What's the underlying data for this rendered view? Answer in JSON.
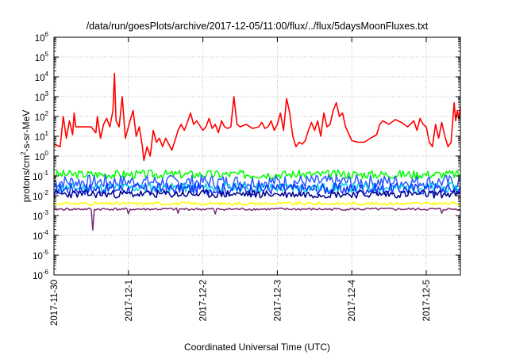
{
  "chart_data": {
    "type": "line",
    "title": "/data/run/goesPlots/archive/2017-12-05/11:00/flux/../flux/5daysMoonFluxes.txt",
    "xlabel": "Coordinated Universal Time (UTC)",
    "ylabel_parts": [
      "protons/cm",
      "2",
      "-s-sr-MeV"
    ],
    "y_scale": "log",
    "ylim": [
      1e-06,
      1000000.0
    ],
    "y_ticks": [
      {
        "exp": "-6",
        "value": 1e-06
      },
      {
        "exp": "-5",
        "value": 1e-05
      },
      {
        "exp": "-4",
        "value": 0.0001
      },
      {
        "exp": "-3",
        "value": 0.001
      },
      {
        "exp": "-2",
        "value": 0.01
      },
      {
        "exp": "-1",
        "value": 0.1
      },
      {
        "exp": "0",
        "value": 1
      },
      {
        "exp": "1",
        "value": 10
      },
      {
        "exp": "2",
        "value": 100
      },
      {
        "exp": "3",
        "value": 1000.0
      },
      {
        "exp": "4",
        "value": 10000.0
      },
      {
        "exp": "5",
        "value": 100000.0
      },
      {
        "exp": "6",
        "value": 1000000.0
      }
    ],
    "y_tick_base": "10",
    "xlim": [
      "2017-11-30T00:00",
      "2017-12-05T11:00"
    ],
    "x_ticks": [
      "2017-11-30",
      "2017-12-1",
      "2017-12-2",
      "2017-12-3",
      "2017-12-4",
      "2017-12-5"
    ],
    "grid": true,
    "series": [
      {
        "color": "#ff0000",
        "points": [
          [
            "2017-11-30T00:00",
            4
          ],
          [
            "2017-11-30T02:00",
            3
          ],
          [
            "2017-11-30T03:00",
            100
          ],
          [
            "2017-11-30T04:00",
            8
          ],
          [
            "2017-11-30T05:00",
            60
          ],
          [
            "2017-11-30T06:00",
            12
          ],
          [
            "2017-11-30T06:30",
            150
          ],
          [
            "2017-11-30T07:00",
            30
          ],
          [
            "2017-11-30T12:00",
            30
          ],
          [
            "2017-11-30T13:30",
            15
          ],
          [
            "2017-11-30T14:00",
            100
          ],
          [
            "2017-11-30T15:00",
            8
          ],
          [
            "2017-11-30T16:00",
            40
          ],
          [
            "2017-11-30T17:00",
            80
          ],
          [
            "2017-11-30T18:00",
            30
          ],
          [
            "2017-11-30T19:00",
            200
          ],
          [
            "2017-11-30T19:30",
            15000
          ],
          [
            "2017-11-30T20:00",
            60
          ],
          [
            "2017-11-30T21:00",
            30
          ],
          [
            "2017-11-30T22:00",
            1000
          ],
          [
            "2017-11-30T23:00",
            8
          ],
          [
            "2017-12-01T00:30",
            60
          ],
          [
            "2017-12-01T01:30",
            200
          ],
          [
            "2017-12-01T02:30",
            10
          ],
          [
            "2017-12-01T03:30",
            30
          ],
          [
            "2017-12-01T04:30",
            3
          ],
          [
            "2017-12-01T05:00",
            0.6
          ],
          [
            "2017-12-01T06:00",
            3
          ],
          [
            "2017-12-01T07:00",
            1
          ],
          [
            "2017-12-01T08:00",
            20
          ],
          [
            "2017-12-01T09:00",
            5
          ],
          [
            "2017-12-01T10:00",
            8
          ],
          [
            "2017-12-01T11:00",
            3
          ],
          [
            "2017-12-01T12:00",
            8
          ],
          [
            "2017-12-01T13:00",
            4
          ],
          [
            "2017-12-01T14:00",
            2
          ],
          [
            "2017-12-01T15:00",
            6
          ],
          [
            "2017-12-01T16:00",
            20
          ],
          [
            "2017-12-01T17:00",
            40
          ],
          [
            "2017-12-01T18:00",
            20
          ],
          [
            "2017-12-01T19:00",
            50
          ],
          [
            "2017-12-01T20:00",
            150
          ],
          [
            "2017-12-01T21:00",
            40
          ],
          [
            "2017-12-01T22:00",
            60
          ],
          [
            "2017-12-02T00:00",
            20
          ],
          [
            "2017-12-02T01:00",
            30
          ],
          [
            "2017-12-02T02:00",
            80
          ],
          [
            "2017-12-02T03:00",
            25
          ],
          [
            "2017-12-02T04:00",
            40
          ],
          [
            "2017-12-02T05:00",
            15
          ],
          [
            "2017-12-02T06:00",
            60
          ],
          [
            "2017-12-02T07:00",
            30
          ],
          [
            "2017-12-02T08:00",
            25
          ],
          [
            "2017-12-02T09:00",
            30
          ],
          [
            "2017-12-02T10:00",
            1000
          ],
          [
            "2017-12-02T11:00",
            40
          ],
          [
            "2017-12-02T12:00",
            30
          ],
          [
            "2017-12-02T14:00",
            40
          ],
          [
            "2017-12-02T16:00",
            25
          ],
          [
            "2017-12-02T18:00",
            30
          ],
          [
            "2017-12-02T19:00",
            50
          ],
          [
            "2017-12-02T20:00",
            25
          ],
          [
            "2017-12-02T21:00",
            30
          ],
          [
            "2017-12-02T22:00",
            60
          ],
          [
            "2017-12-02T23:00",
            20
          ],
          [
            "2017-12-03T00:00",
            40
          ],
          [
            "2017-12-03T01:00",
            150
          ],
          [
            "2017-12-03T02:00",
            20
          ],
          [
            "2017-12-03T03:00",
            800
          ],
          [
            "2017-12-03T04:00",
            150
          ],
          [
            "2017-12-03T05:00",
            10
          ],
          [
            "2017-12-03T06:00",
            3
          ],
          [
            "2017-12-03T07:00",
            5
          ],
          [
            "2017-12-03T08:00",
            4
          ],
          [
            "2017-12-03T09:00",
            6
          ],
          [
            "2017-12-03T10:00",
            20
          ],
          [
            "2017-12-03T11:00",
            50
          ],
          [
            "2017-12-03T12:00",
            20
          ],
          [
            "2017-12-03T13:00",
            60
          ],
          [
            "2017-12-03T14:00",
            10
          ],
          [
            "2017-12-03T15:00",
            150
          ],
          [
            "2017-12-03T16:00",
            30
          ],
          [
            "2017-12-03T17:00",
            40
          ],
          [
            "2017-12-03T18:00",
            200
          ],
          [
            "2017-12-03T19:00",
            500
          ],
          [
            "2017-12-03T20:00",
            100
          ],
          [
            "2017-12-03T21:00",
            150
          ],
          [
            "2017-12-03T22:00",
            30
          ],
          [
            "2017-12-04T00:00",
            6
          ],
          [
            "2017-12-04T02:00",
            5
          ],
          [
            "2017-12-04T04:00",
            5
          ],
          [
            "2017-12-04T06:00",
            8
          ],
          [
            "2017-12-04T08:00",
            12
          ],
          [
            "2017-12-04T09:00",
            40
          ],
          [
            "2017-12-04T10:00",
            60
          ],
          [
            "2017-12-04T12:00",
            40
          ],
          [
            "2017-12-04T14:00",
            70
          ],
          [
            "2017-12-04T16:00",
            50
          ],
          [
            "2017-12-04T18:00",
            30
          ],
          [
            "2017-12-04T20:00",
            60
          ],
          [
            "2017-12-04T21:00",
            20
          ],
          [
            "2017-12-04T22:00",
            80
          ],
          [
            "2017-12-04T23:00",
            40
          ],
          [
            "2017-12-05T00:00",
            30
          ],
          [
            "2017-12-05T01:00",
            5
          ],
          [
            "2017-12-05T02:00",
            3
          ],
          [
            "2017-12-05T03:00",
            40
          ],
          [
            "2017-12-05T04:00",
            8
          ],
          [
            "2017-12-05T05:00",
            50
          ],
          [
            "2017-12-05T06:00",
            10
          ],
          [
            "2017-12-05T07:00",
            3
          ],
          [
            "2017-12-05T08:00",
            5
          ],
          [
            "2017-12-05T09:00",
            500
          ],
          [
            "2017-12-05T09:30",
            60
          ],
          [
            "2017-12-05T10:00",
            200
          ],
          [
            "2017-12-05T10:30",
            80
          ],
          [
            "2017-12-05T11:00",
            300
          ]
        ]
      },
      {
        "color": "#00ff00",
        "base": 0.12,
        "amp": 0.22,
        "seed": 3
      },
      {
        "color": "#2e5bff",
        "base": 0.05,
        "amp": 0.35,
        "seed": 7
      },
      {
        "color": "#00d0e0",
        "base": 0.025,
        "amp": 0.25,
        "seed": 11
      },
      {
        "color": "#1535ff",
        "base": 0.022,
        "amp": 0.3,
        "seed": 17
      },
      {
        "color": "#00008b",
        "base": 0.012,
        "amp": 0.2,
        "seed": 23
      },
      {
        "color": "#ffff00",
        "base": 0.004,
        "amp": 0.08,
        "seed": 31
      },
      {
        "color": "#7b2c73",
        "base": 0.0021,
        "amp": 0.06,
        "seed": 41,
        "dips": [
          [
            "2017-11-30T12:30",
            0.00018
          ],
          [
            "2017-12-01T00:00",
            0.0012
          ],
          [
            "2017-12-01T16:00",
            0.0013
          ],
          [
            "2017-12-02T04:00",
            0.0012
          ],
          [
            "2017-12-05T05:00",
            0.0013
          ]
        ]
      }
    ]
  }
}
